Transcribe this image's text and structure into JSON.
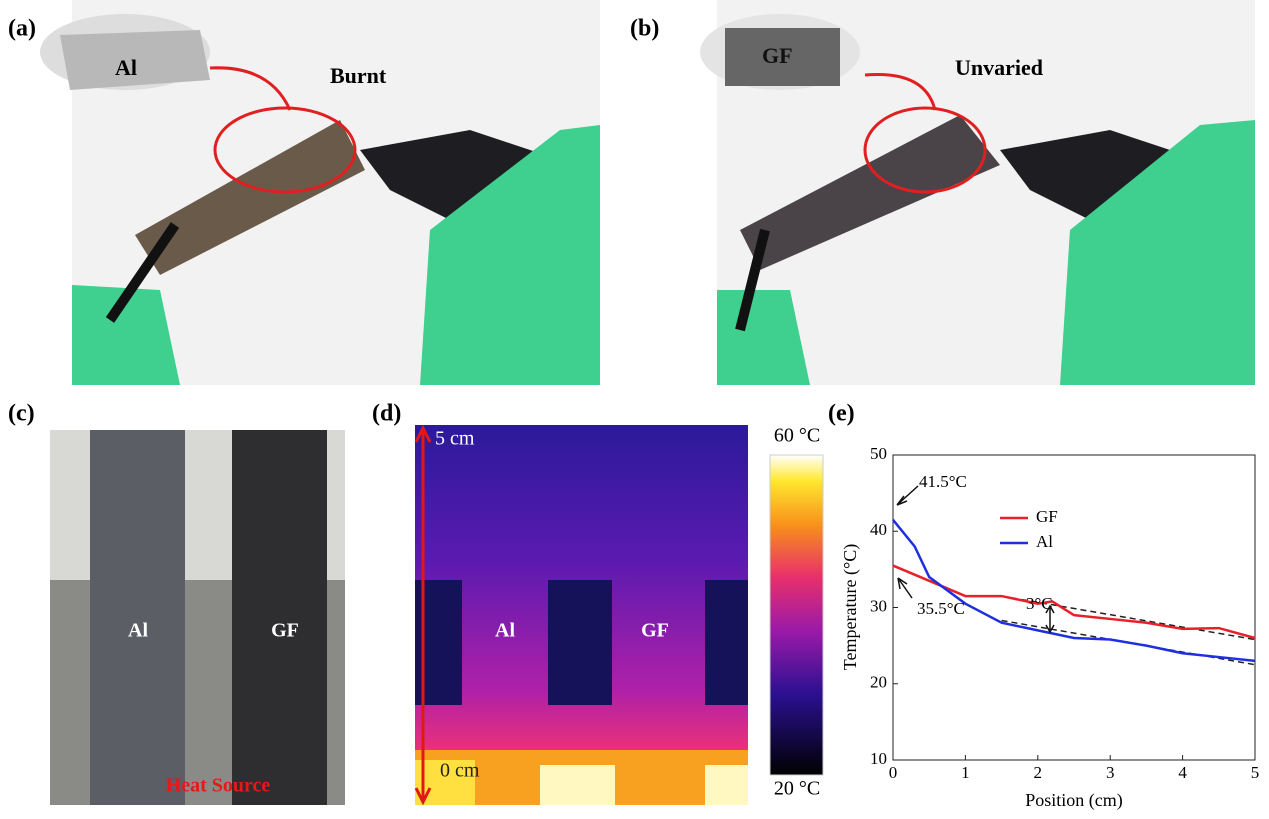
{
  "panels": [
    {
      "label": "(a)",
      "sample": "Al",
      "caption": "Burnt"
    },
    {
      "label": "(b)",
      "sample": "GF",
      "caption": "Unvaried"
    },
    {
      "label": "(c)",
      "left": "Al",
      "right": "GF",
      "note": "Heat Source"
    },
    {
      "label": "(d)",
      "top": "5 cm",
      "bottom": "0 cm",
      "left": "Al",
      "right": "GF",
      "scale_max": "60 °C",
      "scale_min": "20 °C"
    },
    {
      "label": "(e)"
    }
  ],
  "chart_data": {
    "type": "line",
    "xlabel": "Position (cm)",
    "ylabel": "Temperature (°C)",
    "xlim": [
      0,
      5
    ],
    "xticks": [
      0,
      1,
      2,
      3,
      4,
      5
    ],
    "ylim": [
      10,
      50
    ],
    "yticks": [
      10,
      20,
      30,
      40,
      50
    ],
    "series": [
      {
        "name": "GF",
        "color": "#e8202a",
        "x": [
          0,
          0.5,
          1,
          1.5,
          2,
          2.2,
          2.5,
          3,
          3.5,
          4,
          4.5,
          5
        ],
        "values": [
          35.5,
          33.5,
          31.5,
          31.5,
          30.5,
          30.8,
          29,
          28.5,
          28,
          27.2,
          27.3,
          26
        ]
      },
      {
        "name": "Al",
        "color": "#1f2fe0",
        "x": [
          0,
          0.3,
          0.5,
          1,
          1.5,
          2,
          2.5,
          3,
          3.5,
          4,
          4.5,
          5
        ],
        "values": [
          41.5,
          38,
          34,
          30.5,
          28,
          27,
          26,
          25.8,
          25,
          24,
          23.5,
          23
        ]
      }
    ],
    "trend_lines": [
      {
        "x": [
          1.5,
          5
        ],
        "values": [
          31.5,
          25.8
        ]
      },
      {
        "x": [
          1.5,
          5
        ],
        "values": [
          28.3,
          22.5
        ]
      }
    ],
    "annotations": [
      "41.5°C",
      "35.5°C",
      "3°C"
    ]
  }
}
